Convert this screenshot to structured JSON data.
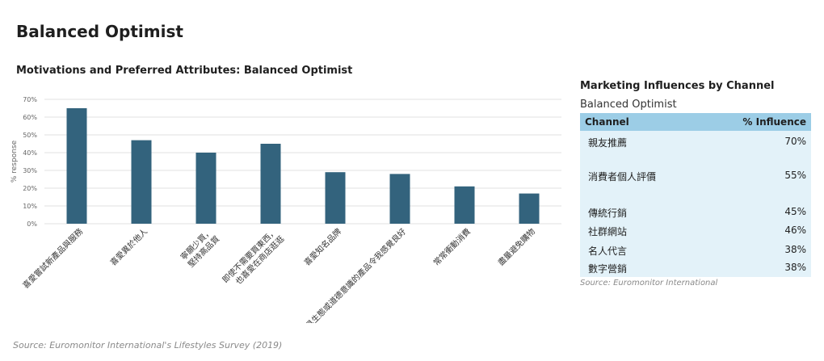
{
  "page_title": "Balanced Optimist",
  "source_main": "Source: Euromonitor International's Lifestyles Survey (2019)",
  "chart_data": {
    "type": "bar",
    "title": "Motivations and Preferred Attributes: Balanced Optimist",
    "xlabel": "",
    "ylabel": "% response",
    "ylim": [
      0,
      70
    ],
    "yticks": [
      "0%",
      "10%",
      "20%",
      "30%",
      "40%",
      "50%",
      "60%",
      "70%"
    ],
    "grid": true,
    "bar_color": "#33637d",
    "categories": [
      "喜愛嘗試新產品與服務",
      "喜愛異於他人",
      "寧願少買，堅持高品質",
      "即使不需要買東西，也喜愛在商店逛逛",
      "喜愛知名品牌",
      "購買具生態或道德意識的產品令我感覺良好",
      "常常衝動消費",
      "盡量避免購物"
    ],
    "values": [
      65,
      47,
      40,
      45,
      29,
      28,
      21,
      17
    ]
  },
  "table": {
    "title": "Marketing Influences by Channel",
    "subtitle": "Balanced Optimist",
    "header": {
      "channel": "Channel",
      "influence": "% Influence"
    },
    "rows": [
      {
        "channel": "親友推薦",
        "value": "70%"
      },
      {
        "channel": "消費者個人評價",
        "value": "55%"
      },
      {
        "channel": "傳統行銷",
        "value": "45%"
      },
      {
        "channel": "社群網站",
        "value": "46%"
      },
      {
        "channel": "名人代言",
        "value": "38%"
      },
      {
        "channel": "數字營銷",
        "value": "38%"
      }
    ],
    "source": "Source: Euromonitor International",
    "header_color": "#9ccde6",
    "body_color": "#e3f2f9"
  }
}
